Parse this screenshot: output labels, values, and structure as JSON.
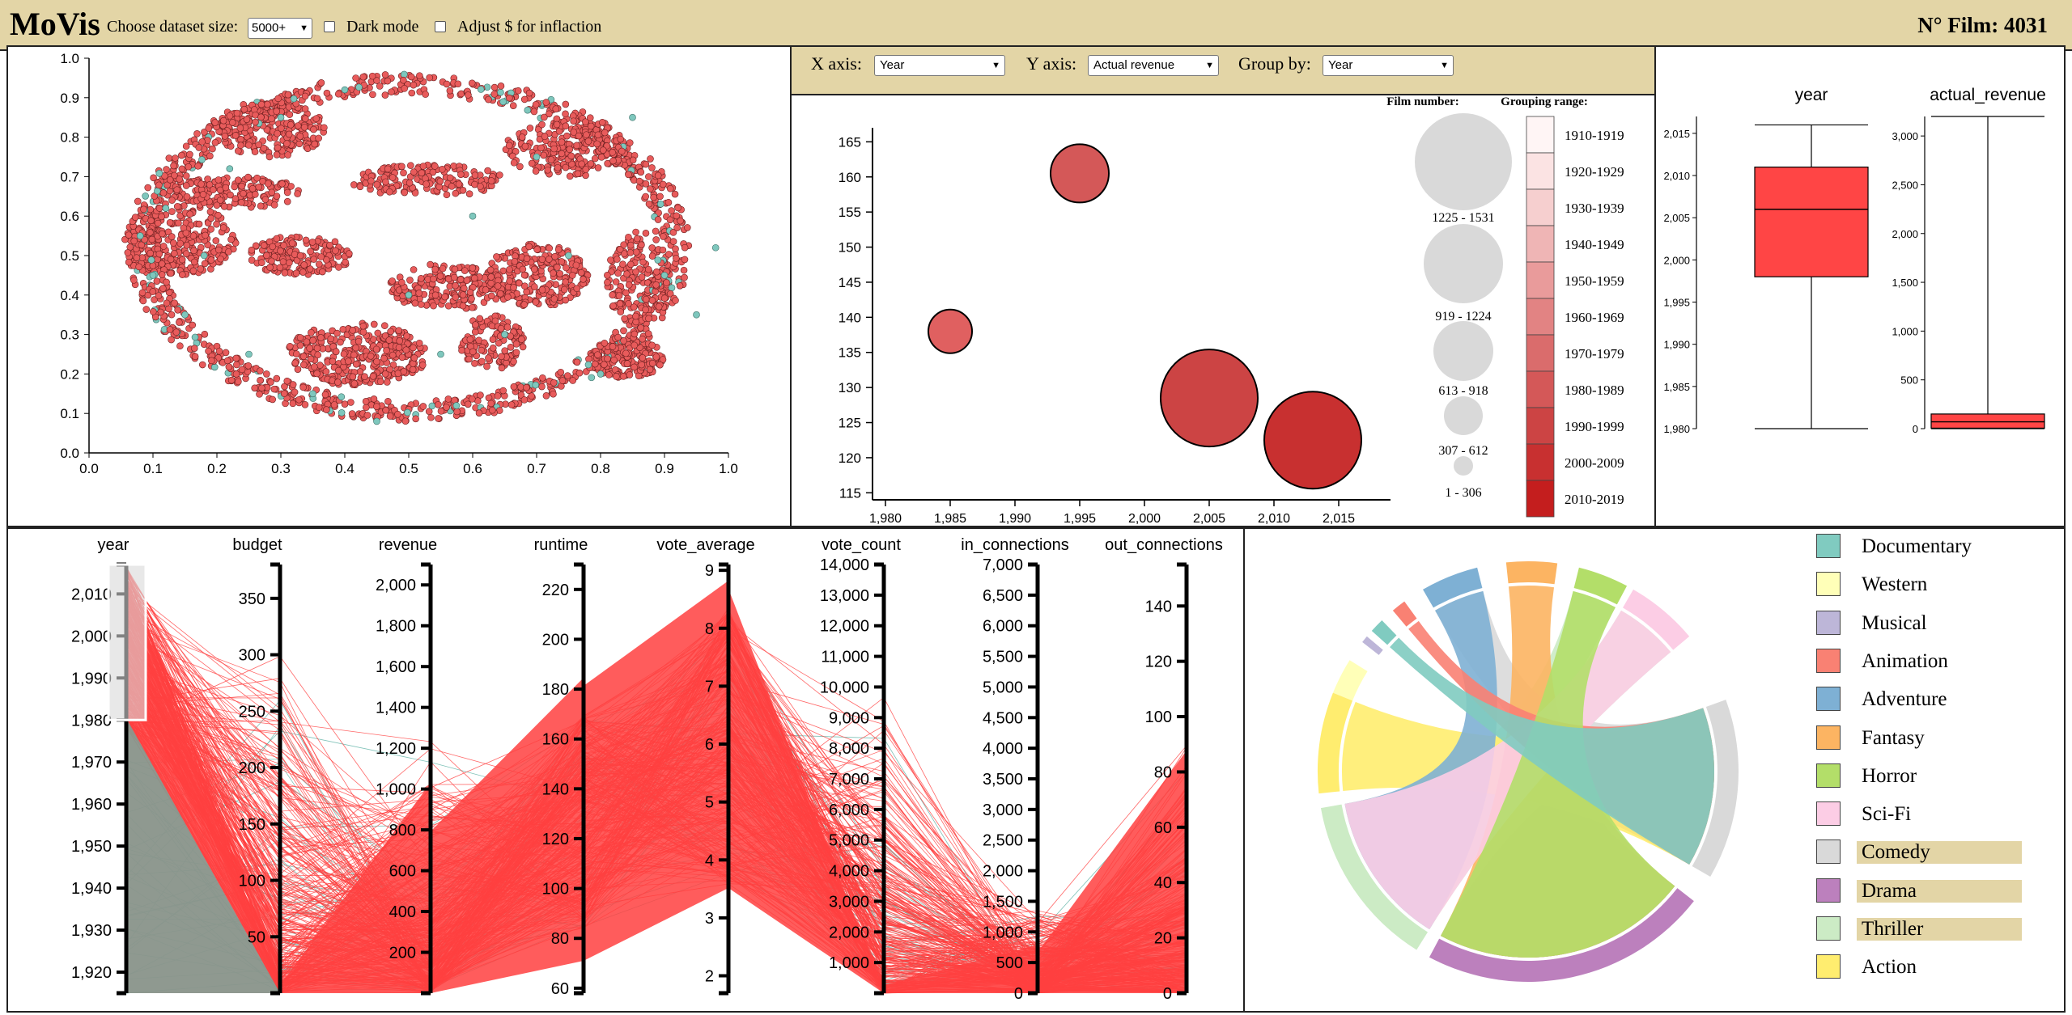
{
  "header": {
    "app_title": "MoVis",
    "dataset_label": "Choose dataset size:",
    "dataset_value": "5000+",
    "dark_mode_label": "Dark mode",
    "inflation_label": "Adjust $ for inflaction",
    "film_count": "N° Film: 4031"
  },
  "scatter": {
    "x_ticks": [
      "0.0",
      "0.1",
      "0.2",
      "0.3",
      "0.4",
      "0.5",
      "0.6",
      "0.7",
      "0.8",
      "0.9",
      "1.0"
    ],
    "y_ticks": [
      "0.0",
      "0.1",
      "0.2",
      "0.3",
      "0.4",
      "0.5",
      "0.6",
      "0.7",
      "0.8",
      "0.9",
      "1.0"
    ],
    "colors": {
      "points": "#e85b5b",
      "highlight": "#7ec7bd"
    }
  },
  "bubble": {
    "x_axis_label": "X axis:",
    "x_axis_value": "Year",
    "y_axis_label": "Y axis:",
    "y_axis_value": "Actual revenue",
    "group_label": "Group by:",
    "group_value": "Year",
    "film_number_title": "Film number:",
    "grouping_title": "Grouping range:",
    "size_legend": [
      "1225 - 1531",
      "919 - 1224",
      "613 - 918",
      "307 - 612",
      "1 - 306"
    ],
    "range_legend": [
      "1910-1919",
      "1920-1929",
      "1930-1939",
      "1940-1949",
      "1950-1959",
      "1960-1969",
      "1970-1979",
      "1980-1989",
      "1990-1999",
      "2000-2009",
      "2010-2019"
    ],
    "range_colors": [
      "#fff5f5",
      "#fbe3e3",
      "#f6cfcf",
      "#efb5b5",
      "#e99b9b",
      "#e28383",
      "#da6c6c",
      "#d45858",
      "#cc4444",
      "#c83030",
      "#c41e1e"
    ]
  },
  "chart_data": [
    {
      "type": "scatter",
      "title": "",
      "xlim": [
        0,
        1
      ],
      "ylim": [
        0,
        1
      ],
      "x": [
        0.08,
        0.1,
        0.12,
        0.15,
        0.18,
        0.22,
        0.25,
        0.3,
        0.35,
        0.4,
        0.45,
        0.5,
        0.55,
        0.6,
        0.65,
        0.7,
        0.75,
        0.8,
        0.85,
        0.9,
        0.95,
        0.98
      ],
      "y": [
        0.55,
        0.45,
        0.62,
        0.35,
        0.5,
        0.72,
        0.25,
        0.85,
        0.15,
        0.92,
        0.08,
        0.4,
        0.25,
        0.6,
        0.3,
        0.75,
        0.5,
        0.2,
        0.85,
        0.45,
        0.35,
        0.52
      ]
    },
    {
      "type": "scatter",
      "title": "",
      "xlabel": "",
      "ylabel": "",
      "xlim": [
        1979,
        2019
      ],
      "ylim": [
        114,
        167
      ],
      "x_ticks": [
        "1,980",
        "1,985",
        "1,990",
        "1,995",
        "2,000",
        "2,005",
        "2,010",
        "2,015"
      ],
      "y_ticks": [
        "115",
        "120",
        "125",
        "130",
        "135",
        "140",
        "145",
        "150",
        "155",
        "160",
        "165"
      ],
      "points": [
        {
          "x": 1985,
          "y": 138,
          "size_range": "1 - 306",
          "color": "#e06060"
        },
        {
          "x": 1995,
          "y": 160.5,
          "size_range": "307 - 612",
          "color": "#d45858"
        },
        {
          "x": 2005,
          "y": 128.5,
          "size_range": "919 - 1224",
          "color": "#cc4444"
        },
        {
          "x": 2013,
          "y": 122.5,
          "size_range": "919 - 1224",
          "color": "#c83030"
        }
      ]
    },
    {
      "type": "box",
      "title": "year",
      "ylim": [
        1980,
        2017
      ],
      "y_ticks": [
        "1,980",
        "1,985",
        "1,990",
        "1,995",
        "2,000",
        "2,005",
        "2,010",
        "2,015"
      ],
      "min": 1980,
      "q1": 1998,
      "median": 2006,
      "q3": 2011,
      "max": 2016
    },
    {
      "type": "box",
      "title": "actual_revenue",
      "ylim": [
        0,
        3200
      ],
      "y_ticks": [
        "0",
        "500",
        "1,000",
        "1,500",
        "2,000",
        "2,500",
        "3,000"
      ],
      "min": 0,
      "q1": 5,
      "median": 70,
      "q3": 150,
      "max": 3200
    },
    {
      "type": "parallel",
      "axes": [
        {
          "name": "year",
          "ticks": [
            "1,920",
            "1,930",
            "1,940",
            "1,950",
            "1,960",
            "1,970",
            "1,980",
            "1,990",
            "2,000",
            "2,010"
          ],
          "range": [
            1915,
            2017
          ]
        },
        {
          "name": "budget",
          "ticks": [
            "50",
            "100",
            "150",
            "200",
            "250",
            "300",
            "350"
          ],
          "range": [
            0,
            380
          ]
        },
        {
          "name": "revenue",
          "ticks": [
            "200",
            "400",
            "600",
            "800",
            "1,000",
            "1,200",
            "1,400",
            "1,600",
            "1,800",
            "2,000"
          ],
          "range": [
            0,
            2100
          ]
        },
        {
          "name": "runtime",
          "ticks": [
            "60",
            "80",
            "100",
            "120",
            "140",
            "160",
            "180",
            "200",
            "220"
          ],
          "range": [
            58,
            230
          ]
        },
        {
          "name": "vote_average",
          "ticks": [
            "2",
            "3",
            "4",
            "5",
            "6",
            "7",
            "8",
            "9"
          ],
          "range": [
            1.7,
            9.1
          ]
        },
        {
          "name": "vote_count",
          "ticks": [
            "1,000",
            "2,000",
            "3,000",
            "4,000",
            "5,000",
            "6,000",
            "7,000",
            "8,000",
            "9,000",
            "10,000",
            "11,000",
            "12,000",
            "13,000",
            "14,000"
          ],
          "range": [
            0,
            14000
          ]
        },
        {
          "name": "in_connections",
          "ticks": [
            "0",
            "500",
            "1,000",
            "1,500",
            "2,000",
            "2,500",
            "3,000",
            "3,500",
            "4,000",
            "4,500",
            "5,000",
            "5,500",
            "6,000",
            "6,500",
            "7,000"
          ],
          "range": [
            0,
            7000
          ]
        },
        {
          "name": "out_connections",
          "ticks": [
            "0",
            "20",
            "40",
            "60",
            "80",
            "100",
            "120",
            "140"
          ],
          "range": [
            0,
            155
          ]
        }
      ],
      "brush": {
        "axis": "year",
        "range": [
          1980,
          2017
        ]
      },
      "colors": {
        "selected": "#ff4040",
        "other": "#5fb3a6"
      }
    },
    {
      "type": "chord",
      "categories": [
        "Documentary",
        "Western",
        "Musical",
        "Animation",
        "Adventure",
        "Fantasy",
        "Horror",
        "Sci-Fi",
        "Comedy",
        "Drama",
        "Thriller",
        "Action"
      ]
    }
  ],
  "chord_legend": [
    {
      "label": "Documentary",
      "color": "#80cbc0",
      "highlight": false
    },
    {
      "label": "Western",
      "color": "#ffffb8",
      "highlight": false
    },
    {
      "label": "Musical",
      "color": "#bdb6d8",
      "highlight": false
    },
    {
      "label": "Animation",
      "color": "#f98173",
      "highlight": false
    },
    {
      "label": "Adventure",
      "color": "#7eb0d4",
      "highlight": false
    },
    {
      "label": "Fantasy",
      "color": "#fcb462",
      "highlight": false
    },
    {
      "label": "Horror",
      "color": "#b3de69",
      "highlight": false
    },
    {
      "label": "Sci-Fi",
      "color": "#fccde5",
      "highlight": false
    },
    {
      "label": "Comedy",
      "color": "#d9d9d9",
      "highlight": true
    },
    {
      "label": "Drama",
      "color": "#bc80bd",
      "highlight": true
    },
    {
      "label": "Thriller",
      "color": "#ccebc5",
      "highlight": true
    },
    {
      "label": "Action",
      "color": "#ffed6f",
      "highlight": false
    }
  ]
}
